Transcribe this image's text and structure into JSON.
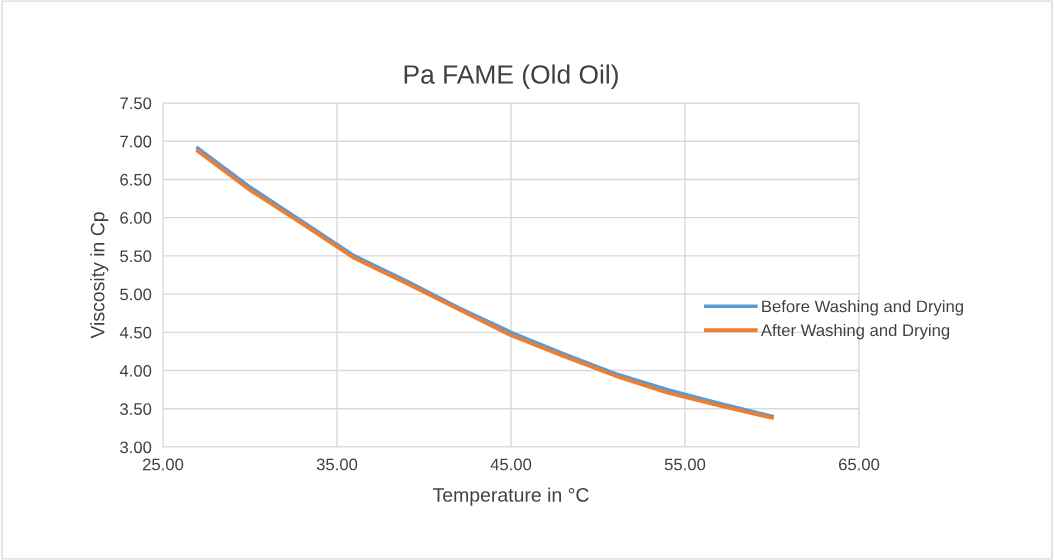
{
  "chart_data": {
    "type": "line",
    "title": "Pa FAME (Old Oil)",
    "xlabel": "Temperature in °C",
    "ylabel": "Viscosity in Cp",
    "x": [
      27,
      30,
      33,
      36,
      39,
      42,
      45,
      48,
      51,
      54,
      57,
      60
    ],
    "series": [
      {
        "name": "Before Washing and Drying",
        "color": "#5b9bd5",
        "values": [
          6.91,
          6.4,
          5.95,
          5.5,
          5.17,
          4.82,
          4.5,
          4.22,
          3.96,
          3.75,
          3.57,
          3.4
        ]
      },
      {
        "name": "After Washing and Drying",
        "color": "#ed7d31",
        "values": [
          6.87,
          6.36,
          5.92,
          5.47,
          5.14,
          4.8,
          4.46,
          4.19,
          3.93,
          3.71,
          3.54,
          3.38
        ]
      }
    ],
    "xlim": [
      25,
      65
    ],
    "xticks": [
      {
        "value": 25,
        "label": "25.00"
      },
      {
        "value": 35,
        "label": "35.00"
      },
      {
        "value": 45,
        "label": "45.00"
      },
      {
        "value": 55,
        "label": "55.00"
      },
      {
        "value": 65,
        "label": "65.00"
      }
    ],
    "ylim": [
      3,
      7.5
    ],
    "yticks": [
      {
        "value": 3,
        "label": "3.00"
      },
      {
        "value": 3.5,
        "label": "3.50"
      },
      {
        "value": 4,
        "label": "4.00"
      },
      {
        "value": 4.5,
        "label": "4.50"
      },
      {
        "value": 5,
        "label": "5.00"
      },
      {
        "value": 5.5,
        "label": "5.50"
      },
      {
        "value": 6,
        "label": "6.00"
      },
      {
        "value": 6.5,
        "label": "6.50"
      },
      {
        "value": 7,
        "label": "7.00"
      },
      {
        "value": 7.5,
        "label": "7.50"
      }
    ],
    "grid": true,
    "legend": "right",
    "marker": "none",
    "line_style": "solid"
  }
}
